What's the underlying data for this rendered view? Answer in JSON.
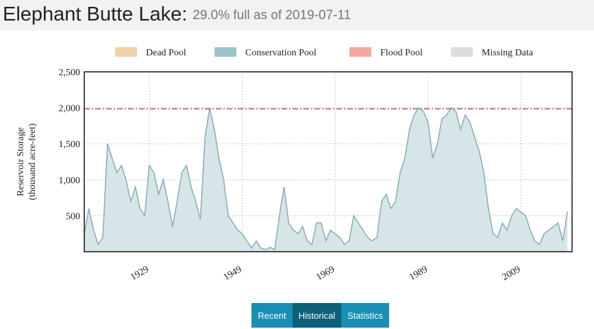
{
  "header": {
    "title": "Elephant Butte Lake:",
    "subtitle": "29.0% full as of 2019-07-11"
  },
  "legend": [
    {
      "label": "Dead Pool",
      "color": "#f0d2a8"
    },
    {
      "label": "Conservation Pool",
      "color": "#9ec3cb"
    },
    {
      "label": "Flood Pool",
      "color": "#f4a6a0"
    },
    {
      "label": "Missing Data",
      "color": "#dddddd"
    }
  ],
  "chart_data": {
    "type": "area",
    "y_label": [
      "Reservoir Storage",
      "(thousand acre-feet)"
    ],
    "xlim": [
      1915,
      2020
    ],
    "xticks": [
      1929,
      1949,
      1969,
      1989,
      2009
    ],
    "ylim": [
      0,
      2500
    ],
    "yticks": [
      500,
      {
        "value": 1000,
        "label": "1,000"
      },
      {
        "value": 1500,
        "label": "1,500"
      },
      {
        "value": 2000,
        "label": "2,000"
      },
      {
        "value": 2500,
        "label": "2,500"
      }
    ],
    "grid": true,
    "flood_pool": 1985,
    "series": [
      {
        "name": "Conservation Pool",
        "color": "#8aabb1",
        "fill": "#d5e5e8",
        "flood_color": "#c0504d",
        "x": [
          1915,
          1916,
          1917,
          1918,
          1919,
          1920,
          1921,
          1922,
          1923,
          1924,
          1925,
          1926,
          1927,
          1928,
          1929,
          1930,
          1931,
          1932,
          1933,
          1934,
          1935,
          1936,
          1937,
          1938,
          1939,
          1940,
          1941,
          1942,
          1943,
          1944,
          1945,
          1946,
          1947,
          1948,
          1949,
          1950,
          1951,
          1952,
          1953,
          1954,
          1955,
          1956,
          1957,
          1958,
          1959,
          1960,
          1961,
          1962,
          1963,
          1964,
          1965,
          1966,
          1967,
          1968,
          1969,
          1970,
          1971,
          1972,
          1973,
          1974,
          1975,
          1976,
          1977,
          1978,
          1979,
          1980,
          1981,
          1982,
          1983,
          1984,
          1985,
          1986,
          1987,
          1988,
          1989,
          1990,
          1991,
          1992,
          1993,
          1994,
          1995,
          1996,
          1997,
          1998,
          1999,
          2000,
          2001,
          2002,
          2003,
          2004,
          2005,
          2006,
          2007,
          2008,
          2009,
          2010,
          2011,
          2012,
          2013,
          2014,
          2015,
          2016,
          2017,
          2018,
          2019
        ],
        "values": [
          250,
          600,
          300,
          100,
          200,
          1500,
          1300,
          1100,
          1200,
          1000,
          700,
          900,
          600,
          500,
          1200,
          1100,
          800,
          1000,
          700,
          350,
          700,
          1100,
          1200,
          900,
          700,
          450,
          1600,
          2000,
          1700,
          1300,
          1000,
          500,
          400,
          300,
          250,
          150,
          50,
          150,
          50,
          30,
          60,
          30,
          500,
          900,
          400,
          300,
          250,
          350,
          150,
          100,
          400,
          400,
          150,
          300,
          250,
          200,
          100,
          150,
          500,
          400,
          300,
          200,
          150,
          200,
          700,
          800,
          600,
          700,
          1100,
          1300,
          1700,
          1900,
          2000,
          1950,
          1800,
          1300,
          1500,
          1850,
          1900,
          2000,
          1950,
          1700,
          1900,
          1800,
          1600,
          1400,
          1100,
          600,
          250,
          200,
          400,
          300,
          500,
          600,
          550,
          500,
          300,
          150,
          100,
          250,
          300,
          350,
          400,
          150,
          560
        ]
      }
    ]
  },
  "buttons": [
    {
      "label": "Recent"
    },
    {
      "label": "Historical",
      "active": true
    },
    {
      "label": "Statistics"
    }
  ]
}
